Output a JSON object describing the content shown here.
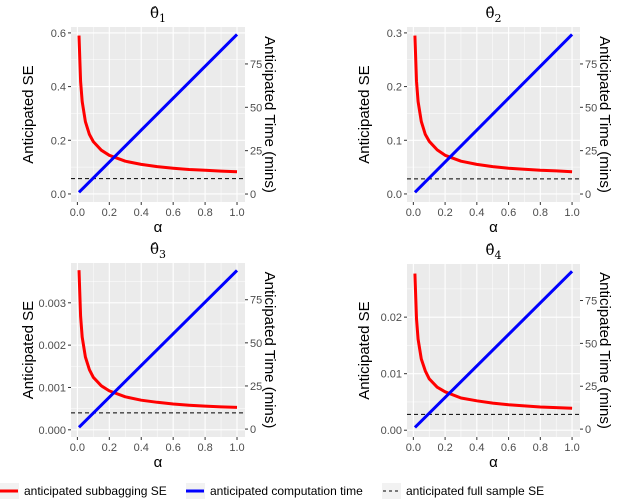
{
  "chart_data": {
    "type": "line",
    "x_label": "α",
    "y_label": "Anticipated SE",
    "y2_label": "Anticipated Time (mins)",
    "x_ticks": [
      "0.0",
      "0.2",
      "0.4",
      "0.6",
      "0.8",
      "1.0"
    ],
    "x_tick_values": [
      0,
      0.2,
      0.4,
      0.6,
      0.8,
      1.0
    ],
    "xlim": [
      -0.04,
      1.05
    ],
    "time_ticks": [
      0,
      25,
      50,
      75
    ],
    "time_lim": [
      -4.6,
      96.3
    ],
    "grid": true,
    "legend_position": "bottom",
    "colors": {
      "se": "#FF0000",
      "time": "#0000FF",
      "full": "#000000",
      "panel_bg": "#EBEBEB"
    },
    "legend": [
      {
        "label": "anticipated subbagging SE",
        "style": "red-line"
      },
      {
        "label": "anticipated computation time",
        "style": "blue-line"
      },
      {
        "label": "anticipated full sample SE",
        "style": "dashed-line"
      }
    ],
    "alpha": [
      0.01,
      0.02,
      0.03,
      0.05,
      0.075,
      0.1,
      0.15,
      0.2,
      0.3,
      0.4,
      0.5,
      0.6,
      0.7,
      0.8,
      0.9,
      1.0
    ],
    "time": {
      "x": [
        0.01,
        1.0
      ],
      "y": [
        1,
        92
      ]
    },
    "panels": [
      {
        "title": "θ̂",
        "subscript": "1",
        "ylim": [
          -0.03,
          0.622
        ],
        "y_ticks": [
          0,
          0.2,
          0.4,
          0.6
        ],
        "y_tick_labels": [
          "0.0",
          "0.2",
          "0.4",
          "0.6"
        ],
        "full_sample_se": 0.057,
        "se": [
          0.59,
          0.419,
          0.344,
          0.269,
          0.222,
          0.195,
          0.163,
          0.144,
          0.122,
          0.11,
          0.102,
          0.096,
          0.091,
          0.088,
          0.085,
          0.083
        ]
      },
      {
        "title": "θ̂",
        "subscript": "2",
        "ylim": [
          -0.015,
          0.311
        ],
        "y_ticks": [
          0,
          0.1,
          0.2,
          0.3
        ],
        "y_tick_labels": [
          "0.0",
          "0.1",
          "0.2",
          "0.3"
        ],
        "full_sample_se": 0.028,
        "se": [
          0.295,
          0.21,
          0.172,
          0.135,
          0.111,
          0.098,
          0.082,
          0.072,
          0.061,
          0.055,
          0.051,
          0.048,
          0.046,
          0.044,
          0.043,
          0.0415
        ]
      },
      {
        "title": "θ̂",
        "subscript": "3",
        "ylim": [
          -0.00017,
          0.00394
        ],
        "y_ticks": [
          0,
          0.001,
          0.002,
          0.003
        ],
        "y_tick_labels": [
          "0.000",
          "0.001",
          "0.002",
          "0.003"
        ],
        "full_sample_se": 0.0004,
        "se": [
          0.00377,
          0.00268,
          0.00219,
          0.00172,
          0.00142,
          0.00124,
          0.00104,
          0.00092,
          0.00078,
          0.0007,
          0.00065,
          0.00061,
          0.00058,
          0.00056,
          0.00054,
          0.00053
        ]
      },
      {
        "title": "θ̂",
        "subscript": "4",
        "ylim": [
          -0.0012,
          0.0294
        ],
        "y_ticks": [
          0,
          0.01,
          0.02
        ],
        "y_tick_labels": [
          "0.00",
          "0.01",
          "0.02"
        ],
        "full_sample_se": 0.0028,
        "se": [
          0.0277,
          0.0197,
          0.0161,
          0.0126,
          0.0105,
          0.0091,
          0.0076,
          0.0068,
          0.0057,
          0.0052,
          0.0048,
          0.0045,
          0.0043,
          0.0041,
          0.004,
          0.0039
        ]
      }
    ]
  }
}
